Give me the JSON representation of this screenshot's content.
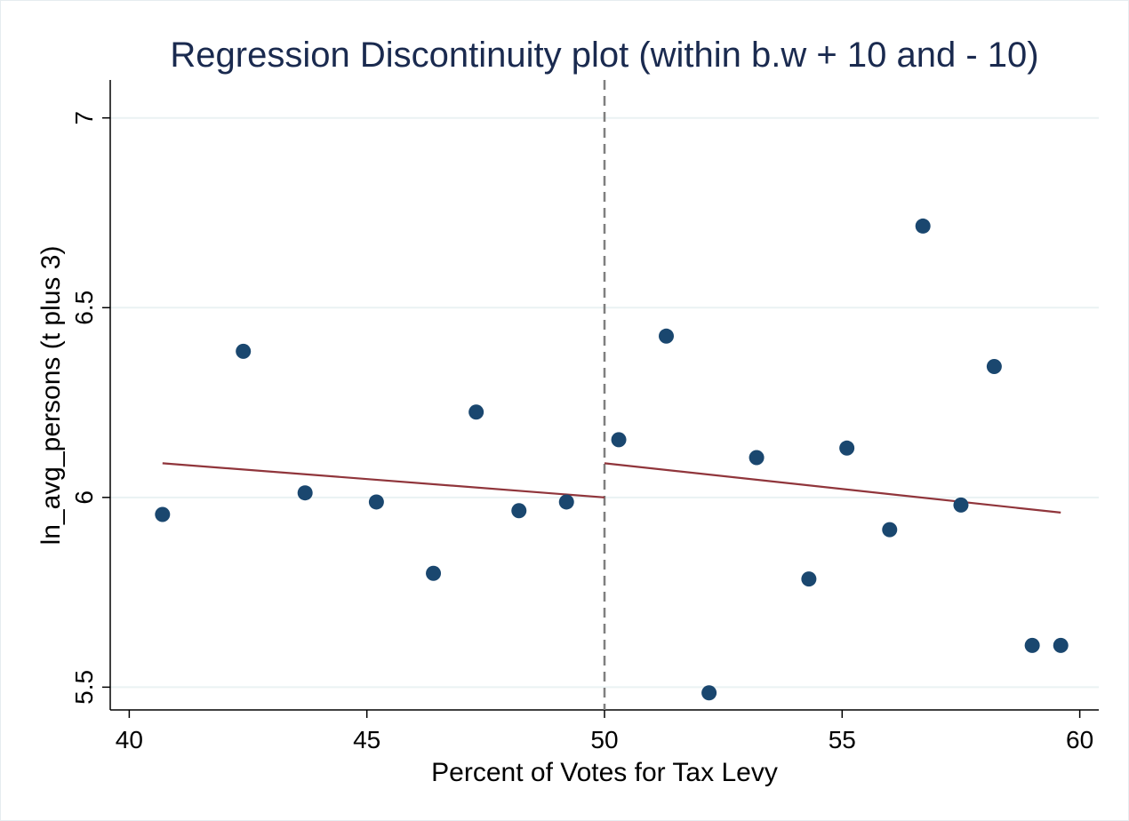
{
  "chart_data": {
    "type": "scatter",
    "title": "Regression Discontinuity plot (within b.w + 10 and - 10)",
    "xlabel": "Percent of Votes for Tax Levy",
    "ylabel": "ln_avg_persons (t plus 3)",
    "xlim": [
      39.6,
      60.4
    ],
    "ylim": [
      5.44,
      7.1
    ],
    "xticks": [
      40,
      45,
      50,
      55,
      60
    ],
    "xtick_labels": [
      "40",
      "45",
      "50",
      "55",
      "60"
    ],
    "yticks": [
      5.5,
      6,
      6.5,
      7
    ],
    "ytick_labels": [
      "5.5",
      "6",
      "6.5",
      "7"
    ],
    "grid": "horizontal",
    "cutoff": 50,
    "colors": {
      "points": "#1a476f",
      "fit": "#90353b",
      "cutoff": "#7f7f7f",
      "grid": "#eaf2f3",
      "title": "#1a2a4f"
    },
    "series": [
      {
        "type": "scatter",
        "x": [
          40.7,
          42.4,
          43.7,
          45.2,
          46.4,
          47.3,
          48.2,
          49.2,
          50.3,
          51.3,
          52.2,
          53.2,
          54.3,
          55.1,
          56.0,
          56.7,
          57.5,
          58.2,
          59.0,
          59.6
        ],
        "y": [
          5.955,
          6.385,
          6.012,
          5.988,
          5.8,
          6.225,
          5.965,
          5.988,
          6.152,
          6.425,
          5.485,
          6.105,
          5.785,
          6.13,
          5.915,
          6.715,
          5.98,
          6.345,
          5.61,
          5.61
        ]
      },
      {
        "type": "line",
        "x": [
          40.7,
          50
        ],
        "y": [
          6.09,
          6.0
        ]
      },
      {
        "type": "line",
        "x": [
          50,
          59.6
        ],
        "y": [
          6.09,
          5.96
        ]
      }
    ]
  }
}
